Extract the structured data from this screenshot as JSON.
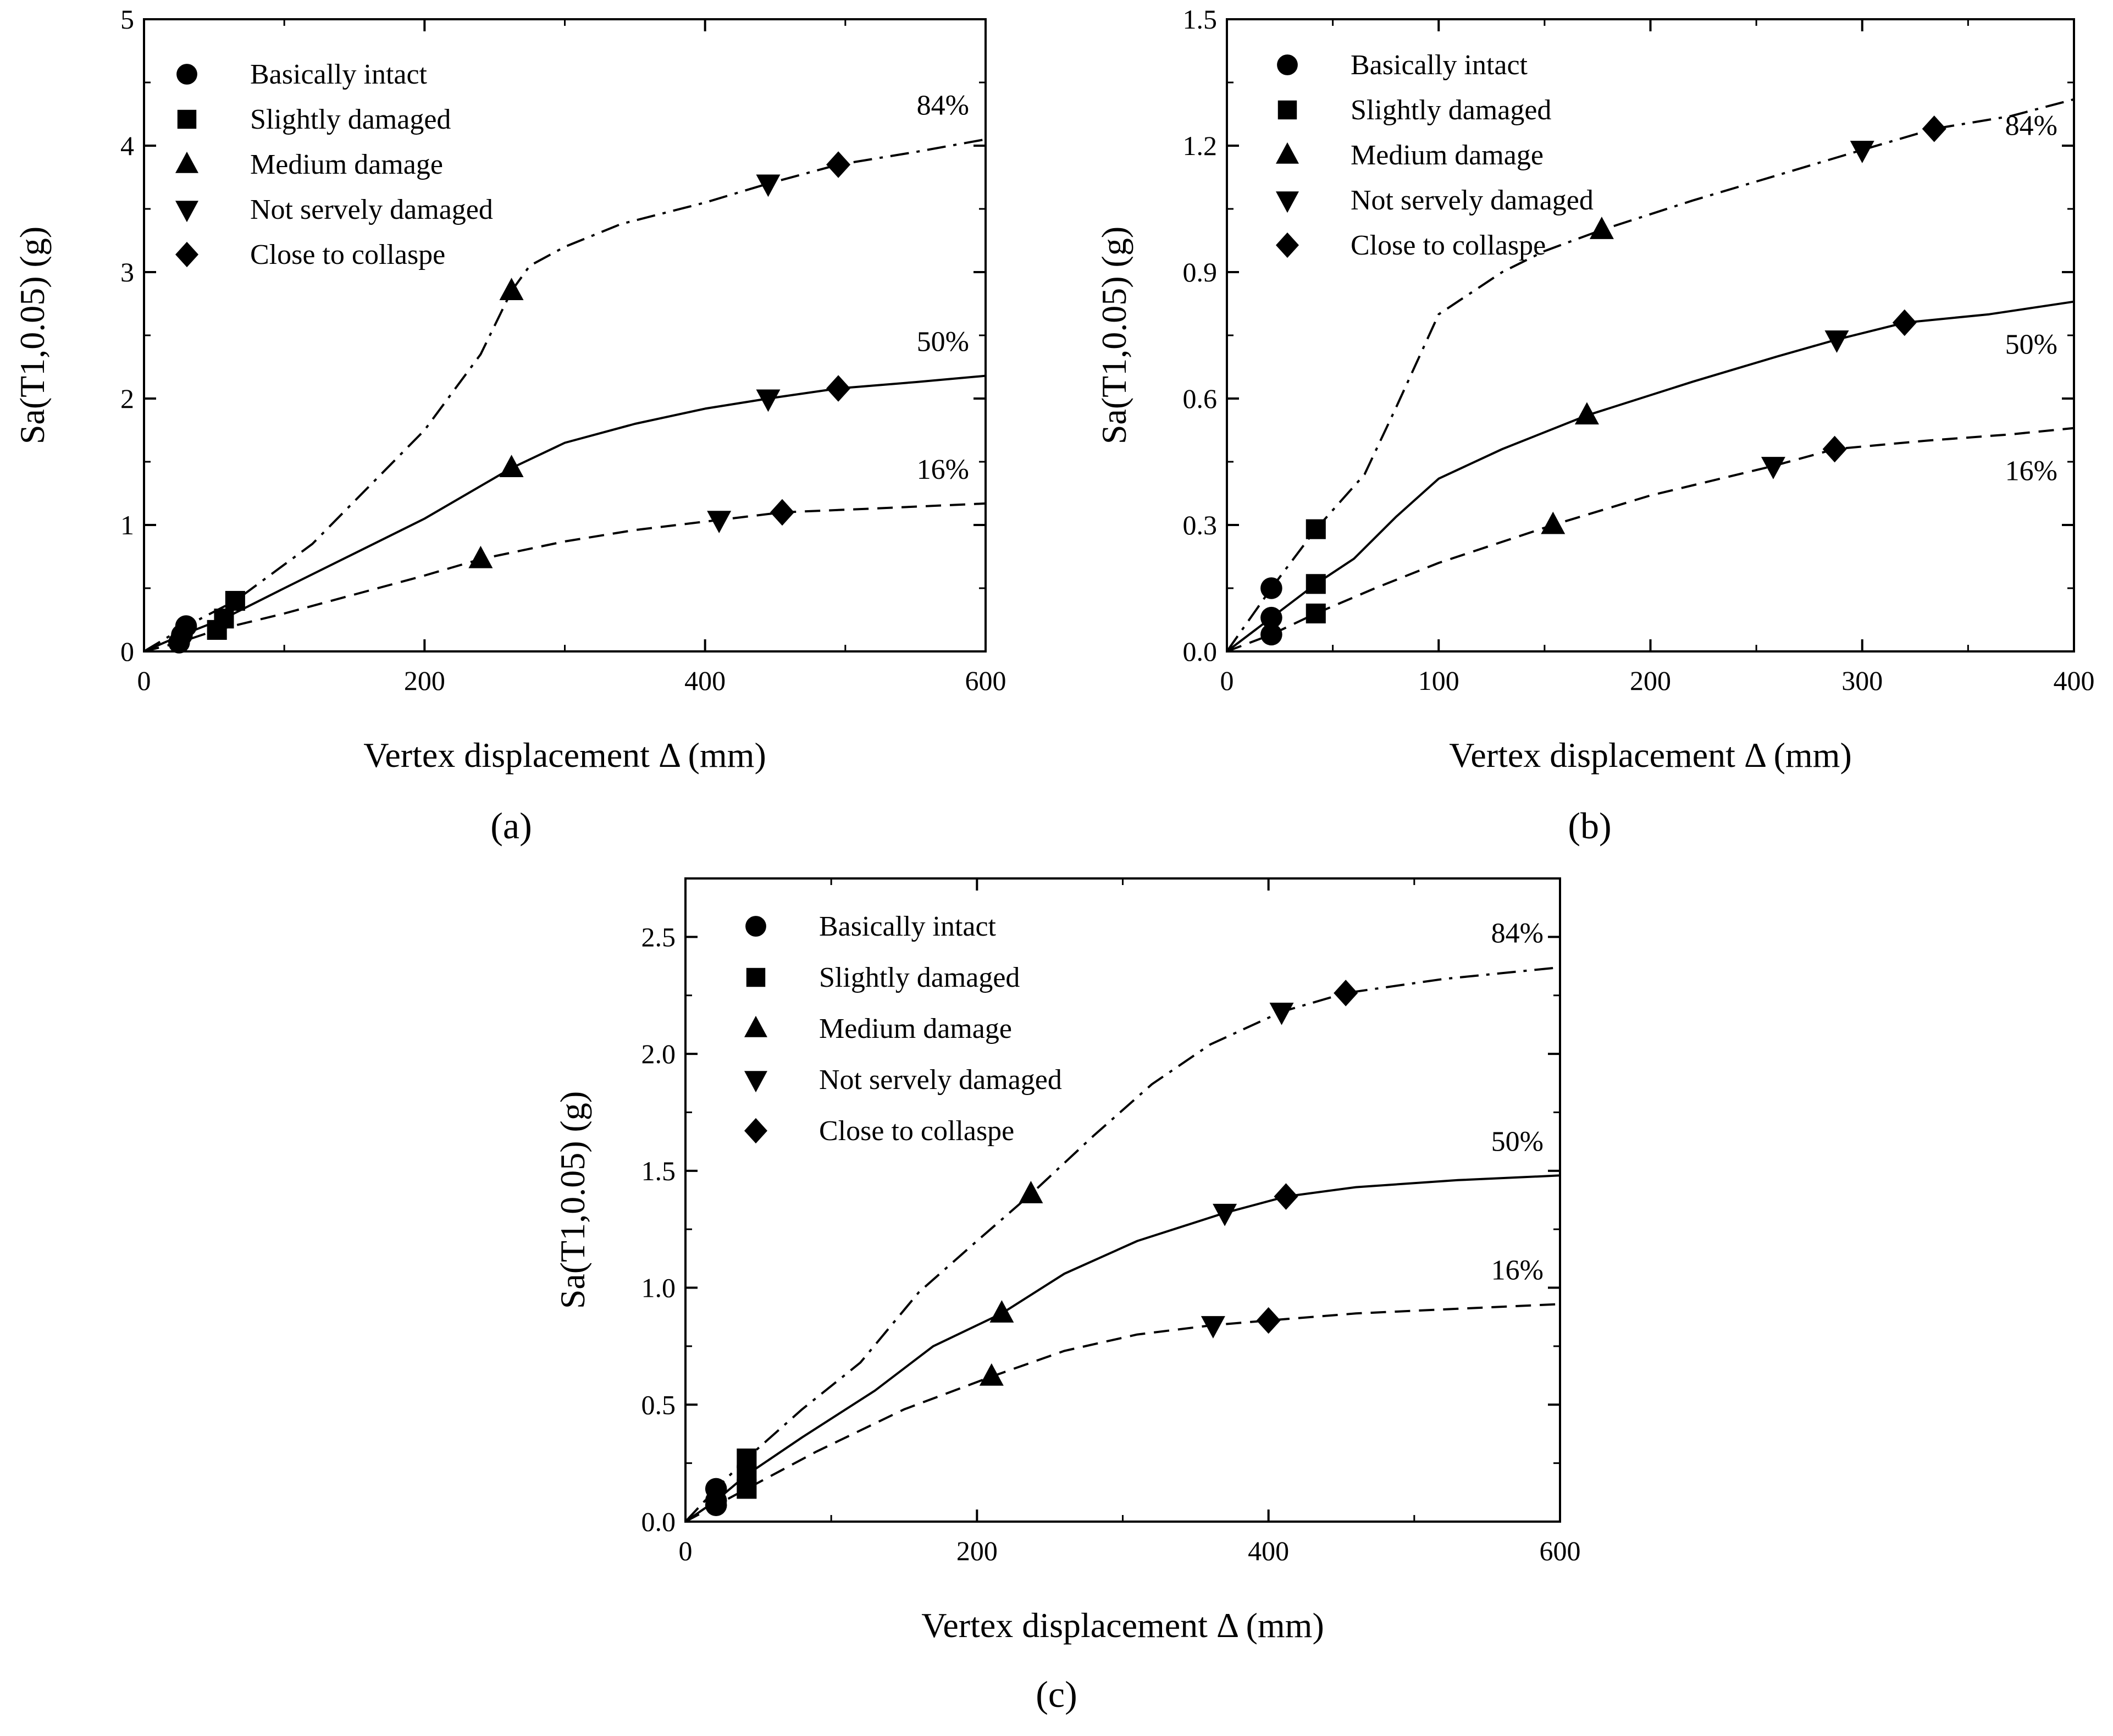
{
  "legend_items": [
    {
      "label": "Basically intact",
      "marker": "circle"
    },
    {
      "label": "Slightly damaged",
      "marker": "square"
    },
    {
      "label": "Medium damage",
      "marker": "triangle-up"
    },
    {
      "label": "Not servely damaged",
      "marker": "triangle-down"
    },
    {
      "label": "Close to collaspe",
      "marker": "diamond"
    }
  ],
  "chart_data": [
    {
      "panel": "a",
      "panel_label": "(a)",
      "type": "line",
      "xlabel": "Vertex displacement Δ (mm)",
      "ylabel": "Sa(T1,0.05) (g)",
      "xlim": [
        0,
        600
      ],
      "ylim": [
        0,
        5
      ],
      "xticks": [
        0,
        200,
        400,
        600
      ],
      "yticks": [
        0,
        1,
        2,
        3,
        4,
        5
      ],
      "ytick_labels": [
        "0",
        "1",
        "2",
        "3",
        "4",
        "5"
      ],
      "legend_position": "top-left",
      "series": [
        {
          "name": "84%",
          "style": "dashdot",
          "points": [
            [
              0,
              0
            ],
            [
              30,
              0.2
            ],
            [
              65,
              0.4
            ],
            [
              120,
              0.85
            ],
            [
              200,
              1.75
            ],
            [
              240,
              2.35
            ],
            [
              262,
              2.85
            ],
            [
              275,
              3.05
            ],
            [
              300,
              3.2
            ],
            [
              340,
              3.38
            ],
            [
              400,
              3.55
            ],
            [
              445,
              3.7
            ],
            [
              495,
              3.85
            ],
            [
              550,
              3.95
            ],
            [
              600,
              4.05
            ]
          ],
          "markers": [
            {
              "marker": "circle",
              "x": 30,
              "y": 0.2
            },
            {
              "marker": "square",
              "x": 65,
              "y": 0.4
            },
            {
              "marker": "triangle-up",
              "x": 262,
              "y": 2.85
            },
            {
              "marker": "triangle-down",
              "x": 445,
              "y": 3.7
            },
            {
              "marker": "diamond",
              "x": 495,
              "y": 3.85
            }
          ]
        },
        {
          "name": "50%",
          "style": "solid",
          "points": [
            [
              0,
              0
            ],
            [
              27,
              0.13
            ],
            [
              57,
              0.26
            ],
            [
              100,
              0.5
            ],
            [
              200,
              1.05
            ],
            [
              262,
              1.45
            ],
            [
              300,
              1.65
            ],
            [
              350,
              1.8
            ],
            [
              400,
              1.92
            ],
            [
              445,
              2.0
            ],
            [
              495,
              2.08
            ],
            [
              550,
              2.13
            ],
            [
              600,
              2.18
            ]
          ],
          "markers": [
            {
              "marker": "circle",
              "x": 27,
              "y": 0.13
            },
            {
              "marker": "square",
              "x": 57,
              "y": 0.26
            },
            {
              "marker": "triangle-up",
              "x": 262,
              "y": 1.45
            },
            {
              "marker": "triangle-down",
              "x": 445,
              "y": 2.0
            },
            {
              "marker": "diamond",
              "x": 495,
              "y": 2.08
            }
          ]
        },
        {
          "name": "16%",
          "style": "dashed",
          "points": [
            [
              0,
              0
            ],
            [
              25,
              0.07
            ],
            [
              52,
              0.17
            ],
            [
              100,
              0.3
            ],
            [
              150,
              0.45
            ],
            [
              200,
              0.6
            ],
            [
              240,
              0.73
            ],
            [
              300,
              0.87
            ],
            [
              350,
              0.96
            ],
            [
              410,
              1.04
            ],
            [
              455,
              1.1
            ],
            [
              520,
              1.13
            ],
            [
              600,
              1.17
            ]
          ],
          "markers": [
            {
              "marker": "circle",
              "x": 25,
              "y": 0.07
            },
            {
              "marker": "square",
              "x": 52,
              "y": 0.17
            },
            {
              "marker": "triangle-up",
              "x": 240,
              "y": 0.73
            },
            {
              "marker": "triangle-down",
              "x": 410,
              "y": 1.04
            },
            {
              "marker": "diamond",
              "x": 455,
              "y": 1.1
            }
          ]
        }
      ]
    },
    {
      "panel": "b",
      "panel_label": "(b)",
      "type": "line",
      "xlabel": "Vertex displacement Δ (mm)",
      "ylabel": "Sa(T1,0.05) (g)",
      "xlim": [
        0,
        400
      ],
      "ylim": [
        0,
        1.5
      ],
      "xticks": [
        0,
        100,
        200,
        300,
        400
      ],
      "yticks": [
        0,
        0.3,
        0.6,
        0.9,
        1.2,
        1.5
      ],
      "ytick_labels": [
        "0.0",
        "0.3",
        "0.6",
        "0.9",
        "1.2",
        "1.5"
      ],
      "legend_position": "top-left",
      "series": [
        {
          "name": "84%",
          "style": "dashdot",
          "points": [
            [
              0,
              0
            ],
            [
              21,
              0.15
            ],
            [
              42,
              0.29
            ],
            [
              65,
              0.42
            ],
            [
              80,
              0.58
            ],
            [
              100,
              0.8
            ],
            [
              130,
              0.9
            ],
            [
              150,
              0.95
            ],
            [
              177,
              1.0
            ],
            [
              220,
              1.07
            ],
            [
              260,
              1.13
            ],
            [
              300,
              1.19
            ],
            [
              334,
              1.24
            ],
            [
              370,
              1.27
            ],
            [
              400,
              1.31
            ]
          ],
          "markers": [
            {
              "marker": "circle",
              "x": 21,
              "y": 0.15
            },
            {
              "marker": "square",
              "x": 42,
              "y": 0.29
            },
            {
              "marker": "triangle-up",
              "x": 177,
              "y": 1.0
            },
            {
              "marker": "triangle-down",
              "x": 300,
              "y": 1.19
            },
            {
              "marker": "diamond",
              "x": 334,
              "y": 1.24
            }
          ]
        },
        {
          "name": "50%",
          "style": "solid",
          "points": [
            [
              0,
              0
            ],
            [
              21,
              0.08
            ],
            [
              42,
              0.16
            ],
            [
              60,
              0.22
            ],
            [
              80,
              0.32
            ],
            [
              100,
              0.41
            ],
            [
              130,
              0.48
            ],
            [
              170,
              0.56
            ],
            [
              220,
              0.64
            ],
            [
              260,
              0.7
            ],
            [
              288,
              0.74
            ],
            [
              320,
              0.78
            ],
            [
              360,
              0.8
            ],
            [
              400,
              0.83
            ]
          ],
          "markers": [
            {
              "marker": "circle",
              "x": 21,
              "y": 0.08
            },
            {
              "marker": "square",
              "x": 42,
              "y": 0.16
            },
            {
              "marker": "triangle-up",
              "x": 170,
              "y": 0.56
            },
            {
              "marker": "triangle-down",
              "x": 288,
              "y": 0.74
            },
            {
              "marker": "diamond",
              "x": 320,
              "y": 0.78
            }
          ]
        },
        {
          "name": "16%",
          "style": "dashed",
          "points": [
            [
              0,
              0
            ],
            [
              21,
              0.04
            ],
            [
              42,
              0.09
            ],
            [
              70,
              0.15
            ],
            [
              100,
              0.21
            ],
            [
              154,
              0.3
            ],
            [
              200,
              0.37
            ],
            [
              258,
              0.44
            ],
            [
              287,
              0.48
            ],
            [
              330,
              0.5
            ],
            [
              370,
              0.515
            ],
            [
              400,
              0.53
            ]
          ],
          "markers": [
            {
              "marker": "circle",
              "x": 21,
              "y": 0.04
            },
            {
              "marker": "square",
              "x": 42,
              "y": 0.09
            },
            {
              "marker": "triangle-up",
              "x": 154,
              "y": 0.3
            },
            {
              "marker": "triangle-down",
              "x": 258,
              "y": 0.44
            },
            {
              "marker": "diamond",
              "x": 287,
              "y": 0.48
            }
          ]
        }
      ]
    },
    {
      "panel": "c",
      "panel_label": "(c)",
      "type": "line",
      "xlabel": "Vertex displacement Δ (mm)",
      "ylabel": "Sa(T1,0.05) (g)",
      "xlim": [
        0,
        600
      ],
      "ylim": [
        0,
        2.75
      ],
      "xticks": [
        0,
        200,
        400,
        600
      ],
      "yticks": [
        0,
        0.5,
        1.0,
        1.5,
        2.0,
        2.5
      ],
      "ytick_labels": [
        "0.0",
        "0.5",
        "1.0",
        "1.5",
        "2.0",
        "2.5"
      ],
      "legend_position": "top-left",
      "series": [
        {
          "name": "84%",
          "style": "dashdot",
          "points": [
            [
              0,
              0
            ],
            [
              21,
              0.14
            ],
            [
              42,
              0.27
            ],
            [
              80,
              0.48
            ],
            [
              120,
              0.68
            ],
            [
              160,
              0.98
            ],
            [
              200,
              1.2
            ],
            [
              237,
              1.4
            ],
            [
              280,
              1.65
            ],
            [
              320,
              1.87
            ],
            [
              360,
              2.04
            ],
            [
              409,
              2.18
            ],
            [
              453,
              2.26
            ],
            [
              520,
              2.32
            ],
            [
              600,
              2.37
            ]
          ],
          "markers": [
            {
              "marker": "circle",
              "x": 21,
              "y": 0.14
            },
            {
              "marker": "square",
              "x": 42,
              "y": 0.27
            },
            {
              "marker": "triangle-up",
              "x": 237,
              "y": 1.4
            },
            {
              "marker": "triangle-down",
              "x": 409,
              "y": 2.18
            },
            {
              "marker": "diamond",
              "x": 453,
              "y": 2.26
            }
          ]
        },
        {
          "name": "50%",
          "style": "solid",
          "points": [
            [
              0,
              0
            ],
            [
              21,
              0.09
            ],
            [
              42,
              0.2
            ],
            [
              80,
              0.36
            ],
            [
              130,
              0.56
            ],
            [
              170,
              0.75
            ],
            [
              217,
              0.89
            ],
            [
              260,
              1.06
            ],
            [
              310,
              1.2
            ],
            [
              370,
              1.32
            ],
            [
              412,
              1.39
            ],
            [
              460,
              1.43
            ],
            [
              530,
              1.46
            ],
            [
              600,
              1.48
            ]
          ],
          "markers": [
            {
              "marker": "circle",
              "x": 21,
              "y": 0.09
            },
            {
              "marker": "square",
              "x": 42,
              "y": 0.2
            },
            {
              "marker": "triangle-up",
              "x": 217,
              "y": 0.89
            },
            {
              "marker": "triangle-down",
              "x": 370,
              "y": 1.32
            },
            {
              "marker": "diamond",
              "x": 412,
              "y": 1.39
            }
          ]
        },
        {
          "name": "16%",
          "style": "dashed",
          "points": [
            [
              0,
              0
            ],
            [
              21,
              0.07
            ],
            [
              42,
              0.14
            ],
            [
              90,
              0.3
            ],
            [
              150,
              0.48
            ],
            [
              210,
              0.62
            ],
            [
              260,
              0.73
            ],
            [
              310,
              0.8
            ],
            [
              362,
              0.84
            ],
            [
              400,
              0.86
            ],
            [
              460,
              0.89
            ],
            [
              530,
              0.91
            ],
            [
              600,
              0.93
            ]
          ],
          "markers": [
            {
              "marker": "circle",
              "x": 21,
              "y": 0.07
            },
            {
              "marker": "square",
              "x": 42,
              "y": 0.14
            },
            {
              "marker": "triangle-up",
              "x": 210,
              "y": 0.62
            },
            {
              "marker": "triangle-down",
              "x": 362,
              "y": 0.84
            },
            {
              "marker": "diamond",
              "x": 400,
              "y": 0.86
            }
          ]
        }
      ]
    }
  ]
}
